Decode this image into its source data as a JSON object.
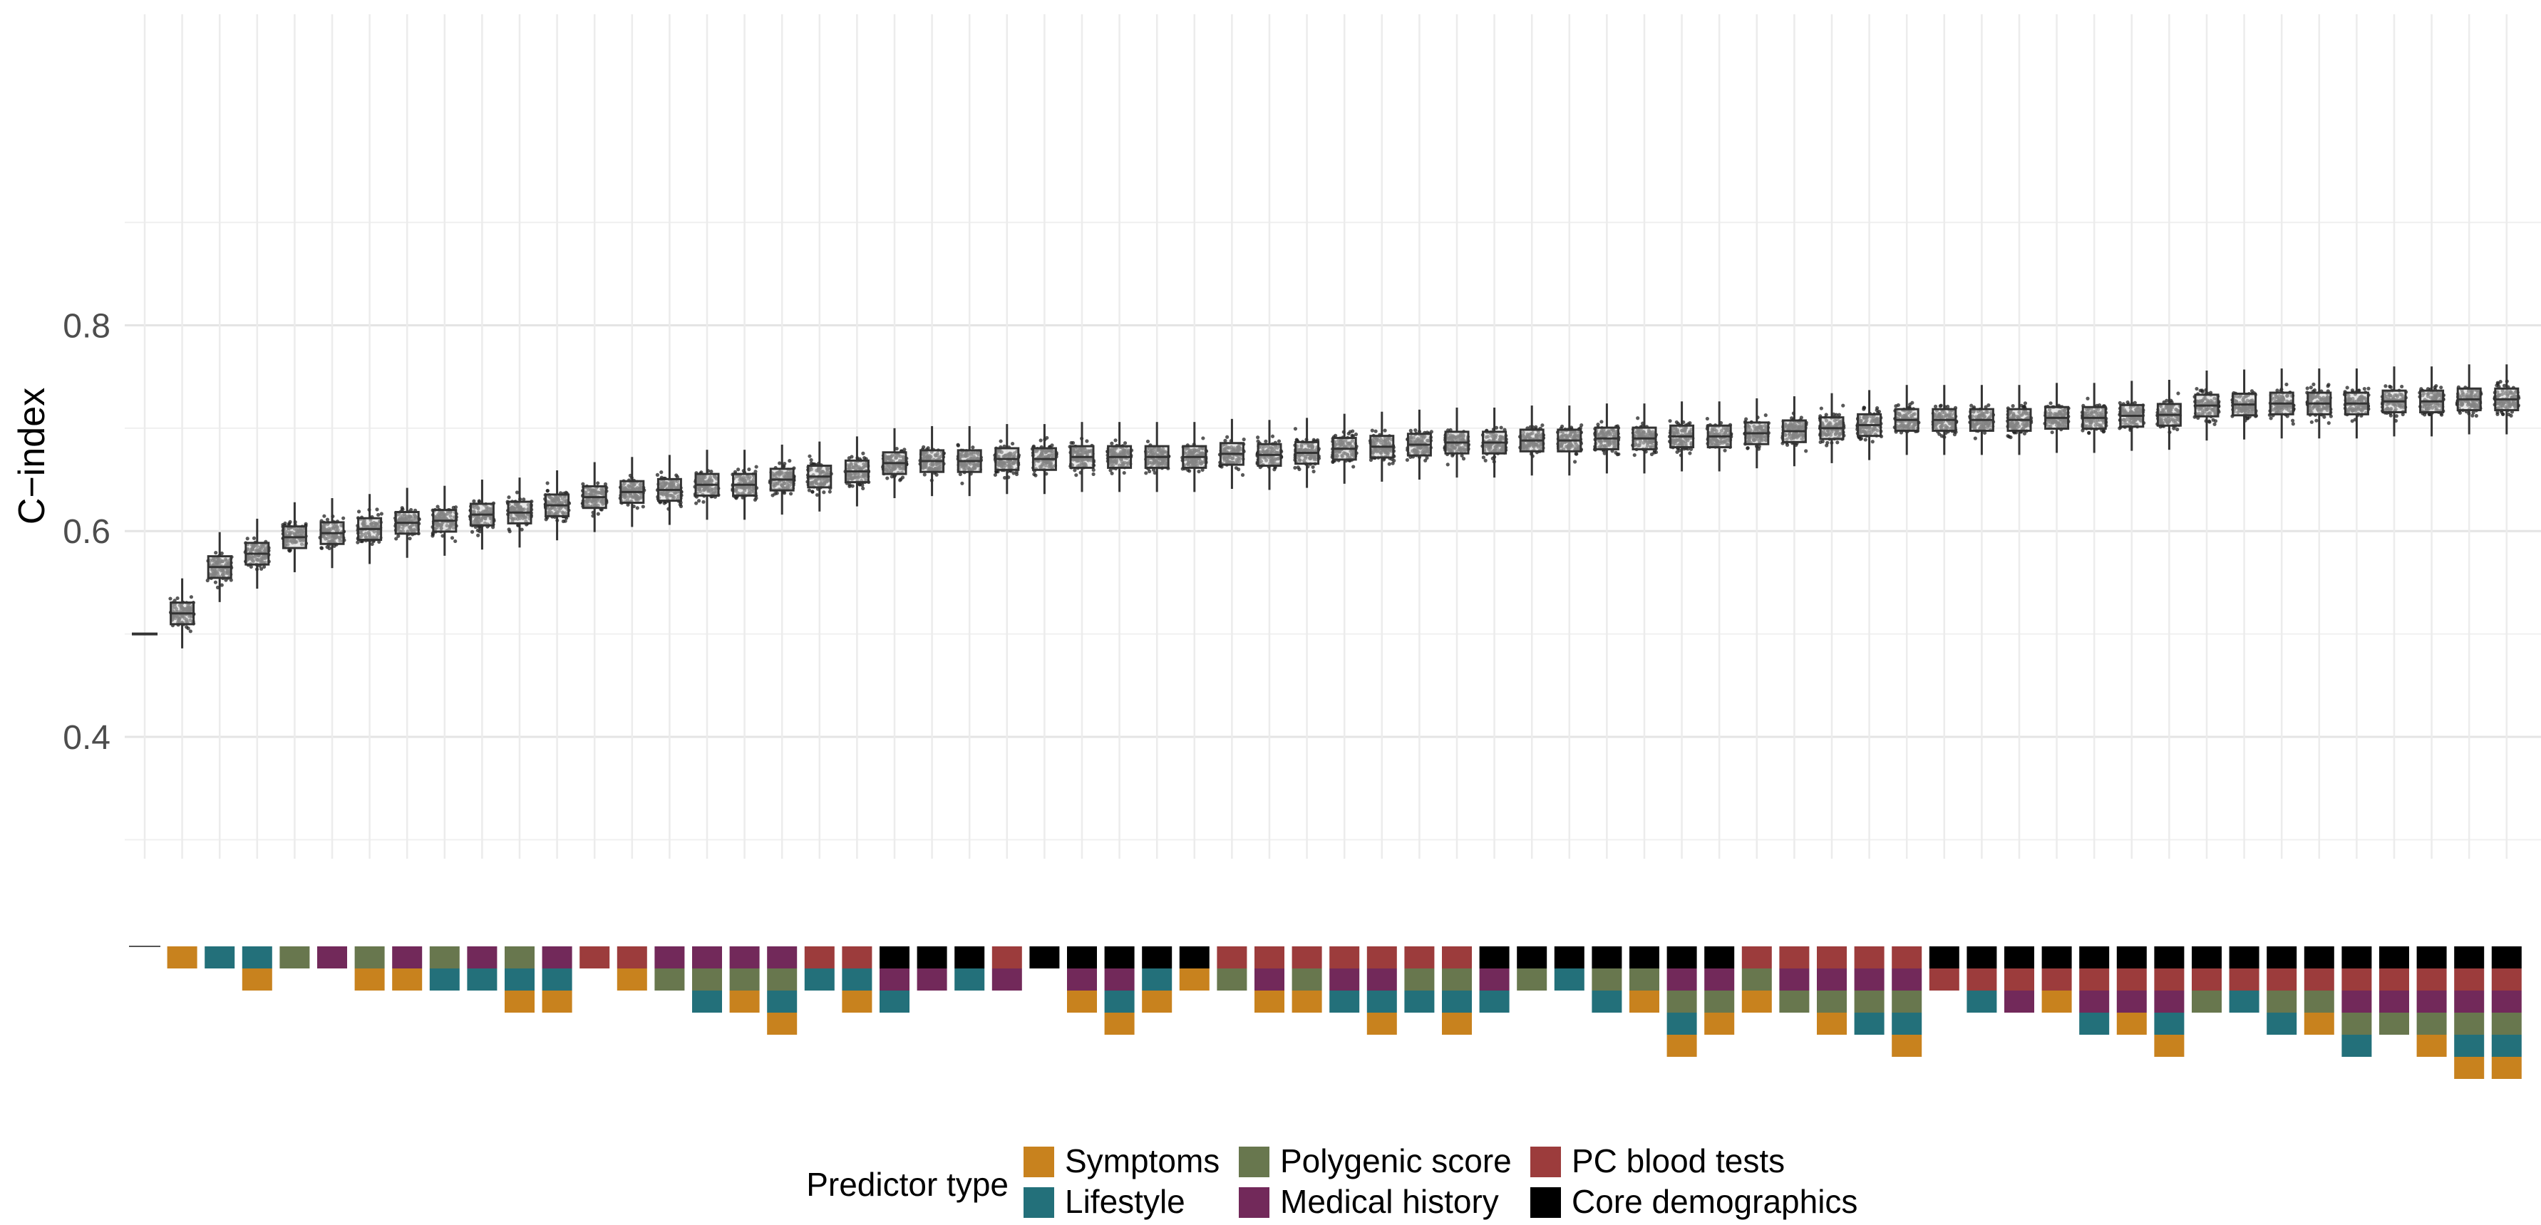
{
  "chart_data": {
    "type": "boxplot",
    "title": "",
    "xlabel": "",
    "ylabel": "C−index",
    "ylim": [
      0.26,
      0.92
    ],
    "y_ticks": [
      "0.4",
      "0.6",
      "0.8"
    ],
    "grid": true,
    "n_models": 64,
    "medians": [
      0.5,
      0.52,
      0.565,
      0.578,
      0.594,
      0.598,
      0.602,
      0.608,
      0.61,
      0.616,
      0.618,
      0.625,
      0.633,
      0.638,
      0.64,
      0.645,
      0.645,
      0.65,
      0.653,
      0.658,
      0.666,
      0.668,
      0.668,
      0.67,
      0.67,
      0.672,
      0.672,
      0.672,
      0.672,
      0.675,
      0.674,
      0.676,
      0.68,
      0.682,
      0.684,
      0.686,
      0.686,
      0.688,
      0.688,
      0.69,
      0.69,
      0.692,
      0.692,
      0.695,
      0.697,
      0.7,
      0.703,
      0.708,
      0.708,
      0.708,
      0.708,
      0.71,
      0.71,
      0.712,
      0.713,
      0.722,
      0.723,
      0.724,
      0.724,
      0.724,
      0.726,
      0.726,
      0.728,
      0.728
    ],
    "predictor_inclusion": [
      [],
      [
        "Symptoms"
      ],
      [
        "Lifestyle"
      ],
      [
        "Lifestyle",
        "Symptoms"
      ],
      [
        "Polygenic score"
      ],
      [
        "Medical history"
      ],
      [
        "Polygenic score",
        "Symptoms"
      ],
      [
        "Medical history",
        "Symptoms"
      ],
      [
        "Polygenic score",
        "Lifestyle"
      ],
      [
        "Medical history",
        "Lifestyle"
      ],
      [
        "Polygenic score",
        "Lifestyle",
        "Symptoms"
      ],
      [
        "Medical history",
        "Lifestyle",
        "Symptoms"
      ],
      [
        "PC blood tests"
      ],
      [
        "PC blood tests",
        "Symptoms"
      ],
      [
        "Medical history",
        "Polygenic score"
      ],
      [
        "Medical history",
        "Polygenic score",
        "Lifestyle"
      ],
      [
        "Medical history",
        "Polygenic score",
        "Symptoms"
      ],
      [
        "Medical history",
        "Polygenic score",
        "Lifestyle",
        "Symptoms"
      ],
      [
        "PC blood tests",
        "Lifestyle"
      ],
      [
        "PC blood tests",
        "Lifestyle",
        "Symptoms"
      ],
      [
        "Core demographics",
        "Medical history",
        "Lifestyle"
      ],
      [
        "Core demographics",
        "Medical history"
      ],
      [
        "Core demographics",
        "Lifestyle"
      ],
      [
        "PC blood tests",
        "Medical history"
      ],
      [
        "Core demographics"
      ],
      [
        "Core demographics",
        "Medical history",
        "Symptoms"
      ],
      [
        "Core demographics",
        "Medical history",
        "Lifestyle",
        "Symptoms"
      ],
      [
        "Core demographics",
        "Lifestyle",
        "Symptoms"
      ],
      [
        "Core demographics",
        "Symptoms"
      ],
      [
        "PC blood tests",
        "Polygenic score"
      ],
      [
        "PC blood tests",
        "Medical history",
        "Symptoms"
      ],
      [
        "PC blood tests",
        "Polygenic score",
        "Symptoms"
      ],
      [
        "PC blood tests",
        "Medical history",
        "Lifestyle"
      ],
      [
        "PC blood tests",
        "Medical history",
        "Lifestyle",
        "Symptoms"
      ],
      [
        "PC blood tests",
        "Polygenic score",
        "Lifestyle"
      ],
      [
        "PC blood tests",
        "Polygenic score",
        "Lifestyle",
        "Symptoms"
      ],
      [
        "Core demographics",
        "Medical history",
        "Lifestyle"
      ],
      [
        "Core demographics",
        "Polygenic score"
      ],
      [
        "Core demographics",
        "Lifestyle"
      ],
      [
        "Core demographics",
        "Polygenic score",
        "Lifestyle"
      ],
      [
        "Core demographics",
        "Polygenic score",
        "Symptoms"
      ],
      [
        "Core demographics",
        "Medical history",
        "Polygenic score",
        "Lifestyle",
        "Symptoms"
      ],
      [
        "Core demographics",
        "Medical history",
        "Polygenic score",
        "Symptoms"
      ],
      [
        "PC blood tests",
        "Polygenic score",
        "Symptoms"
      ],
      [
        "PC blood tests",
        "Medical history",
        "Polygenic score"
      ],
      [
        "PC blood tests",
        "Medical history",
        "Polygenic score",
        "Symptoms"
      ],
      [
        "PC blood tests",
        "Medical history",
        "Polygenic score",
        "Lifestyle"
      ],
      [
        "PC blood tests",
        "Medical history",
        "Polygenic score",
        "Lifestyle",
        "Symptoms"
      ],
      [
        "Core demographics",
        "PC blood tests"
      ],
      [
        "Core demographics",
        "PC blood tests",
        "Lifestyle"
      ],
      [
        "Core demographics",
        "PC blood tests",
        "Medical history"
      ],
      [
        "Core demographics",
        "PC blood tests",
        "Symptoms"
      ],
      [
        "Core demographics",
        "PC blood tests",
        "Medical history",
        "Lifestyle"
      ],
      [
        "Core demographics",
        "PC blood tests",
        "Medical history",
        "Symptoms"
      ],
      [
        "Core demographics",
        "PC blood tests",
        "Medical history",
        "Lifestyle",
        "Symptoms"
      ],
      [
        "Core demographics",
        "PC blood tests",
        "Polygenic score"
      ],
      [
        "Core demographics",
        "PC blood tests",
        "Lifestyle"
      ],
      [
        "Core demographics",
        "PC blood tests",
        "Polygenic score",
        "Lifestyle"
      ],
      [
        "Core demographics",
        "PC blood tests",
        "Polygenic score",
        "Symptoms"
      ],
      [
        "Core demographics",
        "PC blood tests",
        "Medical history",
        "Polygenic score",
        "Lifestyle"
      ],
      [
        "Core demographics",
        "PC blood tests",
        "Medical history",
        "Polygenic score"
      ],
      [
        "Core demographics",
        "PC blood tests",
        "Medical history",
        "Polygenic score",
        "Symptoms"
      ],
      [
        "Core demographics",
        "PC blood tests",
        "Medical history",
        "Polygenic score",
        "Lifestyle",
        "Symptoms"
      ],
      [
        "Core demographics",
        "PC blood tests",
        "Medical history",
        "Polygenic score",
        "Lifestyle",
        "Symptoms"
      ]
    ],
    "legend": {
      "title": "Predictor type",
      "position": "bottom",
      "items": [
        {
          "label": "Symptoms",
          "color": "#c8821e"
        },
        {
          "label": "Lifestyle",
          "color": "#23707a"
        },
        {
          "label": "Polygenic score",
          "color": "#68774e"
        },
        {
          "label": "Medical history",
          "color": "#72295a"
        },
        {
          "label": "PC blood tests",
          "color": "#9c3c3c"
        },
        {
          "label": "Core demographics",
          "color": "#000000"
        }
      ]
    },
    "stack_order": [
      "Core demographics",
      "PC blood tests",
      "Medical history",
      "Polygenic score",
      "Lifestyle",
      "Symptoms"
    ]
  }
}
